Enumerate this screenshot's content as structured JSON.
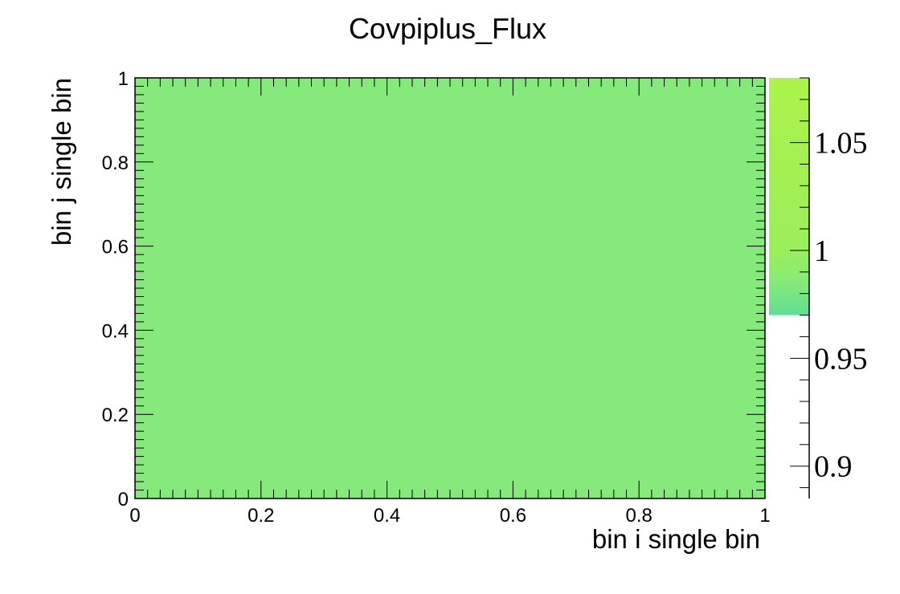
{
  "chart_data": {
    "type": "heatmap",
    "title": "Covpiplus_Flux",
    "xlabel": "bin i single bin",
    "ylabel": "bin j single bin",
    "xlim": [
      0,
      1
    ],
    "ylim": [
      0,
      1
    ],
    "x_ticks": [
      "0",
      "0.2",
      "0.4",
      "0.6",
      "0.8",
      "1"
    ],
    "y_ticks": [
      "0",
      "0.2",
      "0.4",
      "0.6",
      "0.8",
      "1"
    ],
    "x_bins": [
      "single bin"
    ],
    "y_bins": [
      "single bin"
    ],
    "values": [
      [
        1
      ]
    ],
    "cell_color": "#85e97b",
    "zlim": [
      0.885,
      1.08
    ],
    "z_ticks": [
      "0.9",
      "0.95",
      "1",
      "1.05"
    ],
    "palette": [
      {
        "value": 0.97,
        "color": "#5fdd98"
      },
      {
        "value": 0.985,
        "color": "#86ea78"
      },
      {
        "value": 1.0,
        "color": "#9cee5c"
      },
      {
        "value": 1.08,
        "color": "#acf24a"
      }
    ],
    "palette_coverage": [
      0.97,
      1.08
    ],
    "grid": false
  }
}
